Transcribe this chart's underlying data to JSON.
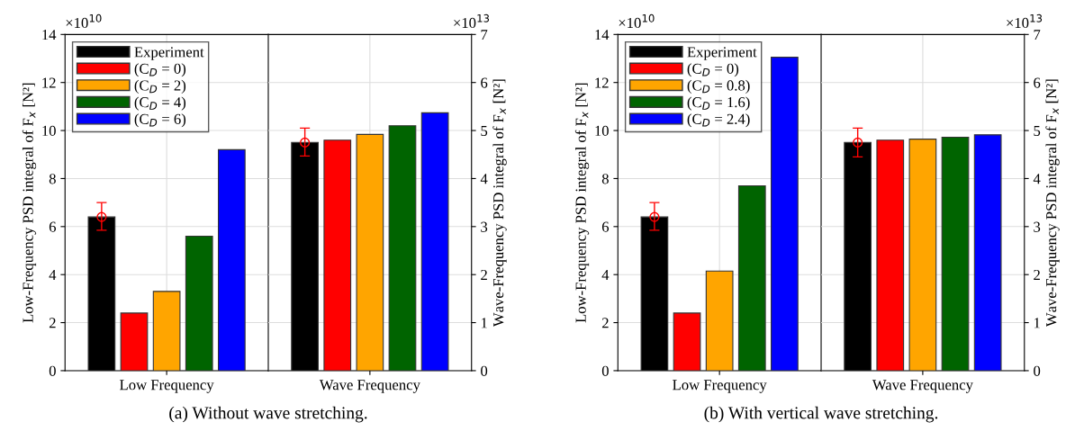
{
  "chart_data": [
    {
      "type": "bar",
      "xlabel": "(a) Without wave stretching.",
      "ylabel": "Low-Frequency PSD integral of F$_{x}$ [N²]",
      "y2label": "Wave-Frequency PSD integral of F$_{x}$ [N²]",
      "categories": [
        "Low Frequency",
        "Wave Frequency"
      ],
      "series": [
        {
          "name": "Experiment",
          "color": "#000000",
          "values": [
            6.4,
            null
          ],
          "errors": [
            [
              5.85,
              7.0
            ],
            null
          ]
        },
        {
          "name": "(C$_{D}$ = 0)",
          "color": "#ff0000",
          "values": [
            2.4,
            null
          ]
        },
        {
          "name": "(C$_{D}$ = 2)",
          "color": "#ffa500",
          "values": [
            3.3,
            null
          ]
        },
        {
          "name": "(C$_{D}$ = 4)",
          "color": "#006400",
          "values": [
            5.6,
            null
          ]
        },
        {
          "name": "(C$_{D}$ = 6)",
          "color": "#0000ff",
          "values": [
            9.2,
            null
          ]
        },
        {
          "color": "#000000",
          "values": [
            null,
            4.75
          ],
          "errors": [
            null,
            [
              4.47,
              5.05
            ]
          ],
          "axis": "y2"
        },
        {
          "color": "#ff0000",
          "values": [
            null,
            4.8
          ],
          "axis": "y2"
        },
        {
          "color": "#ffa500",
          "values": [
            null,
            4.92
          ],
          "axis": "y2"
        },
        {
          "color": "#006400",
          "values": [
            null,
            5.1
          ],
          "axis": "y2"
        },
        {
          "color": "#0000ff",
          "values": [
            null,
            5.37
          ],
          "axis": "y2"
        }
      ],
      "ylim": [
        0,
        14
      ],
      "yticks": [
        0,
        2,
        4,
        6,
        8,
        10,
        12,
        14
      ],
      "y2lim": [
        0,
        7
      ],
      "y2ticks": [
        0,
        1,
        2,
        3,
        4,
        5,
        6,
        7
      ],
      "annotations": [
        "×10$^{10}$",
        "×10$^{13}$"
      ],
      "grid": true,
      "legend": "top left"
    },
    {
      "type": "bar",
      "xlabel": "(b) With vertical wave stretching.",
      "ylabel": "Low-Frequency PSD integral of F$_{x}$ [N²]",
      "y2label": "Wave-Frequency PSD integral of F$_{x}$ [N²]",
      "categories": [
        "Low Frequency",
        "Wave Frequency"
      ],
      "series": [
        {
          "name": "Experiment",
          "color": "#000000",
          "values": [
            6.4,
            null
          ],
          "errors": [
            [
              5.85,
              7.0
            ],
            null
          ]
        },
        {
          "name": "(C$_{D}$ = 0)",
          "color": "#ff0000",
          "values": [
            2.4,
            null
          ]
        },
        {
          "name": "(C$_{D}$ = 0.8)",
          "color": "#ffa500",
          "values": [
            4.15,
            null
          ]
        },
        {
          "name": "(C$_{D}$ = 1.6)",
          "color": "#006400",
          "values": [
            7.7,
            null
          ]
        },
        {
          "name": "(C$_{D}$ = 2.4)",
          "color": "#0000ff",
          "values": [
            13.05,
            null
          ]
        },
        {
          "color": "#000000",
          "values": [
            null,
            4.75
          ],
          "errors": [
            null,
            [
              4.45,
              5.05
            ]
          ],
          "axis": "y2"
        },
        {
          "color": "#ff0000",
          "values": [
            null,
            4.8
          ],
          "axis": "y2"
        },
        {
          "color": "#ffa500",
          "values": [
            null,
            4.82
          ],
          "axis": "y2"
        },
        {
          "color": "#006400",
          "values": [
            null,
            4.86
          ],
          "axis": "y2"
        },
        {
          "color": "#0000ff",
          "values": [
            null,
            4.91
          ],
          "axis": "y2"
        }
      ],
      "ylim": [
        0,
        14
      ],
      "yticks": [
        0,
        2,
        4,
        6,
        8,
        10,
        12,
        14
      ],
      "y2lim": [
        0,
        7
      ],
      "y2ticks": [
        0,
        1,
        2,
        3,
        4,
        5,
        6,
        7
      ],
      "annotations": [
        "×10$^{10}$",
        "×10$^{13}$"
      ],
      "grid": true,
      "legend": "top left"
    }
  ]
}
